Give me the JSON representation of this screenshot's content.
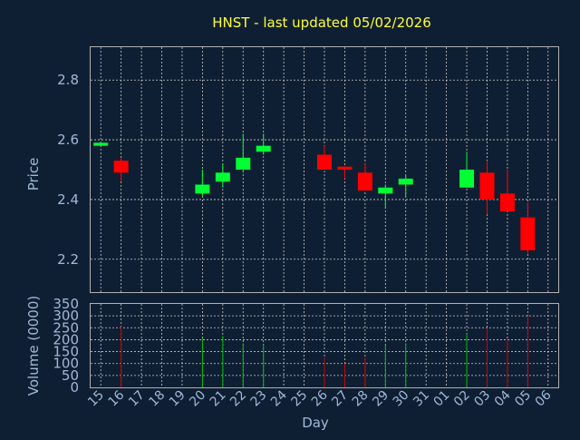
{
  "chart_data": {
    "type": "candlestick",
    "title": "HNST - last updated 05/02/2026",
    "xlabel": "Day",
    "price_panel": {
      "ylabel": "Price",
      "ylim": [
        2.09,
        2.91
      ],
      "yticks": [
        2.2,
        2.4,
        2.6,
        2.8
      ],
      "grid": true
    },
    "volume_panel": {
      "ylabel": "Volume (0000)",
      "ylim": [
        0,
        350
      ],
      "yticks": [
        0,
        50,
        100,
        150,
        200,
        250,
        300,
        350
      ],
      "grid": true
    },
    "days": [
      "15",
      "16",
      "17",
      "18",
      "19",
      "20",
      "21",
      "22",
      "23",
      "24",
      "25",
      "26",
      "27",
      "28",
      "29",
      "30",
      "31",
      "01",
      "02",
      "03",
      "04",
      "05",
      "06"
    ],
    "candles": [
      {
        "day": "15",
        "open": 2.58,
        "high": 2.59,
        "low": 2.58,
        "close": 2.59,
        "volume": 0
      },
      {
        "day": "16",
        "open": 2.53,
        "high": 2.54,
        "low": 2.46,
        "close": 2.49,
        "volume": 255
      },
      {
        "day": "20",
        "open": 2.42,
        "high": 2.5,
        "low": 2.41,
        "close": 2.45,
        "volume": 205
      },
      {
        "day": "21",
        "open": 2.46,
        "high": 2.52,
        "low": 2.44,
        "close": 2.49,
        "volume": 215
      },
      {
        "day": "22",
        "open": 2.5,
        "high": 2.62,
        "low": 2.49,
        "close": 2.54,
        "volume": 185
      },
      {
        "day": "23",
        "open": 2.56,
        "high": 2.62,
        "low": 2.55,
        "close": 2.58,
        "volume": 180
      },
      {
        "day": "26",
        "open": 2.55,
        "high": 2.58,
        "low": 2.5,
        "close": 2.5,
        "volume": 125
      },
      {
        "day": "27",
        "open": 2.51,
        "high": 2.51,
        "low": 2.47,
        "close": 2.5,
        "volume": 100
      },
      {
        "day": "28",
        "open": 2.49,
        "high": 2.52,
        "low": 2.43,
        "close": 2.43,
        "volume": 125
      },
      {
        "day": "29",
        "open": 2.42,
        "high": 2.45,
        "low": 2.37,
        "close": 2.44,
        "volume": 175
      },
      {
        "day": "30",
        "open": 2.45,
        "high": 2.48,
        "low": 2.41,
        "close": 2.47,
        "volume": 185
      },
      {
        "day": "02",
        "open": 2.44,
        "high": 2.56,
        "low": 2.44,
        "close": 2.5,
        "volume": 225
      },
      {
        "day": "03",
        "open": 2.49,
        "high": 2.53,
        "low": 2.35,
        "close": 2.4,
        "volume": 250
      },
      {
        "day": "04",
        "open": 2.42,
        "high": 2.5,
        "low": 2.36,
        "close": 2.36,
        "volume": 205
      },
      {
        "day": "05",
        "open": 2.34,
        "high": 2.39,
        "low": 2.22,
        "close": 2.23,
        "volume": 300
      }
    ],
    "colors": {
      "up": "#00ff33",
      "down": "#ff0000",
      "up_volume": "#00c000",
      "down_volume": "#cc0000",
      "background": "#0f1f33",
      "title": "#ffff33",
      "labels": "#a0b8d8"
    }
  }
}
